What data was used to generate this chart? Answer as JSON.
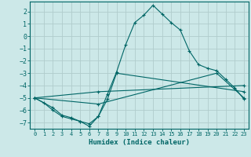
{
  "title": "",
  "xlabel": "Humidex (Indice chaleur)",
  "bg_color": "#cce8e8",
  "grid_color": "#b0cccc",
  "line_color": "#006666",
  "xlim": [
    -0.5,
    23.5
  ],
  "ylim": [
    -7.5,
    2.8
  ],
  "xticks": [
    0,
    1,
    2,
    3,
    4,
    5,
    6,
    7,
    8,
    9,
    10,
    11,
    12,
    13,
    14,
    15,
    16,
    17,
    18,
    19,
    20,
    21,
    22,
    23
  ],
  "yticks": [
    -7,
    -6,
    -5,
    -4,
    -3,
    -2,
    -1,
    0,
    1,
    2
  ],
  "lines": [
    {
      "x": [
        0,
        1,
        2,
        3,
        4,
        5,
        6,
        7,
        8,
        9,
        10,
        11,
        12,
        13,
        14,
        15,
        16,
        17,
        18,
        19,
        20,
        21,
        22,
        23
      ],
      "y": [
        -5.0,
        -5.4,
        -6.0,
        -6.5,
        -6.7,
        -6.9,
        -7.3,
        -6.5,
        -4.7,
        -2.9,
        -0.7,
        1.1,
        1.7,
        2.5,
        1.8,
        1.1,
        0.5,
        -1.2,
        -2.3,
        -2.6,
        -2.8,
        -3.5,
        -4.2,
        -5.1
      ]
    },
    {
      "x": [
        0,
        2,
        3,
        4,
        5,
        6,
        7,
        8,
        9,
        23
      ],
      "y": [
        -5.0,
        -5.8,
        -6.4,
        -6.6,
        -6.9,
        -7.1,
        -6.5,
        -5.1,
        -3.0,
        -4.5
      ]
    },
    {
      "x": [
        0,
        7,
        23
      ],
      "y": [
        -5.0,
        -4.5,
        -4.0
      ]
    },
    {
      "x": [
        0,
        7,
        20,
        23
      ],
      "y": [
        -5.0,
        -5.5,
        -3.0,
        -5.0
      ]
    }
  ]
}
